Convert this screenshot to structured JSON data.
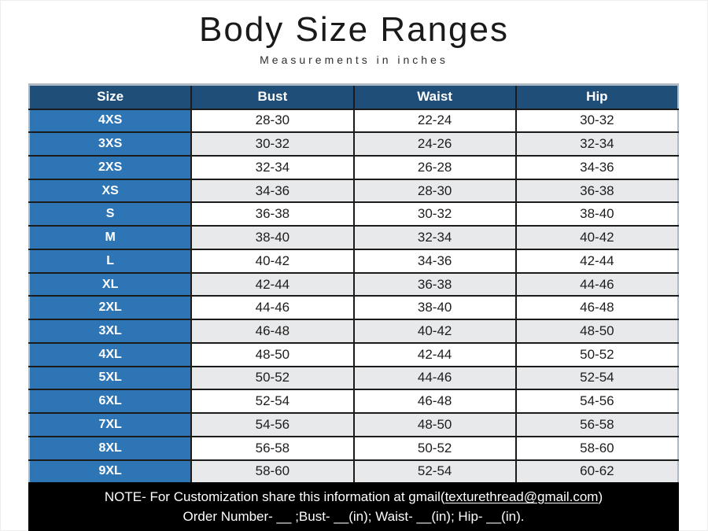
{
  "title": "Body Size Ranges",
  "subtitle": "Measurements in inches",
  "table": {
    "columns": [
      "Size",
      "Bust",
      "Waist",
      "Hip"
    ],
    "rows": [
      [
        "4XS",
        "28-30",
        "22-24",
        "30-32"
      ],
      [
        "3XS",
        "30-32",
        "24-26",
        "32-34"
      ],
      [
        "2XS",
        "32-34",
        "26-28",
        "34-36"
      ],
      [
        "XS",
        "34-36",
        "28-30",
        "36-38"
      ],
      [
        "S",
        "36-38",
        "30-32",
        "38-40"
      ],
      [
        "M",
        "38-40",
        "32-34",
        "40-42"
      ],
      [
        "L",
        "40-42",
        "34-36",
        "42-44"
      ],
      [
        "XL",
        "42-44",
        "36-38",
        "44-46"
      ],
      [
        "2XL",
        "44-46",
        "38-40",
        "46-48"
      ],
      [
        "3XL",
        "46-48",
        "40-42",
        "48-50"
      ],
      [
        "4XL",
        "48-50",
        "42-44",
        "50-52"
      ],
      [
        "5XL",
        "50-52",
        "44-46",
        "52-54"
      ],
      [
        "6XL",
        "52-54",
        "46-48",
        "54-56"
      ],
      [
        "7XL",
        "54-56",
        "48-50",
        "56-58"
      ],
      [
        "8XL",
        "56-58",
        "50-52",
        "58-60"
      ],
      [
        "9XL",
        "58-60",
        "52-54",
        "60-62"
      ]
    ]
  },
  "note": {
    "line1_prefix": "NOTE- For Customization share this information at gmail(",
    "email": "texturethread@gmail.com",
    "line1_suffix": ")",
    "line2": "Order Number- __ ;Bust- __(in); Waist- __(in); Hip- __(in)."
  },
  "colors": {
    "header_bg": "#1F4E79",
    "size_column_bg": "#2E75B6",
    "alt_row_bg": "#E8E9EB",
    "grid_line": "#1B1B1B",
    "outer_border": "#AEB9C4",
    "note_bg": "#000000",
    "note_text": "#FFFFFF"
  }
}
